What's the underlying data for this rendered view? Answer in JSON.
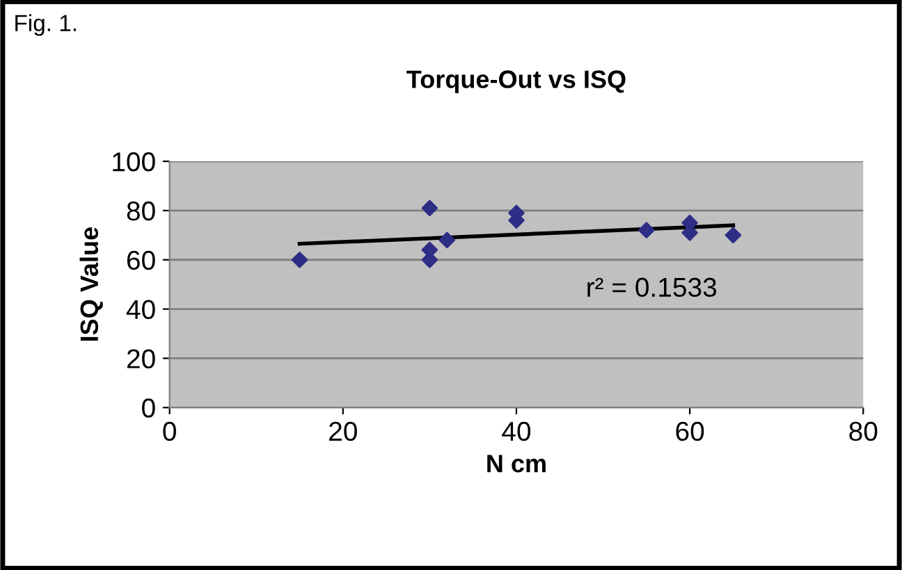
{
  "chart_data": {
    "type": "scatter",
    "title": "Torque-Out vs ISQ",
    "xlabel": "N cm",
    "ylabel": "ISQ Value",
    "annotations": [
      "Fig. 1.",
      "r² = 0.1533"
    ],
    "grid": "y",
    "series": [
      {
        "marker": "diamond",
        "color": "#2e2e86",
        "x": [
          15,
          30,
          30,
          30,
          32,
          40,
          40,
          55,
          60,
          60,
          65
        ],
        "values": [
          60,
          81,
          64,
          60,
          68,
          79,
          76,
          72,
          75,
          71,
          70
        ]
      },
      {
        "type": "line",
        "color": "#000000",
        "x": [
          15,
          65
        ],
        "values": [
          66.5,
          74
        ]
      }
    ],
    "xlim": [
      0,
      80
    ],
    "xticks": [
      0,
      20,
      40,
      60,
      80
    ],
    "ylim": [
      0,
      100
    ],
    "yticks": [
      0,
      20,
      40,
      60,
      80,
      100
    ]
  }
}
